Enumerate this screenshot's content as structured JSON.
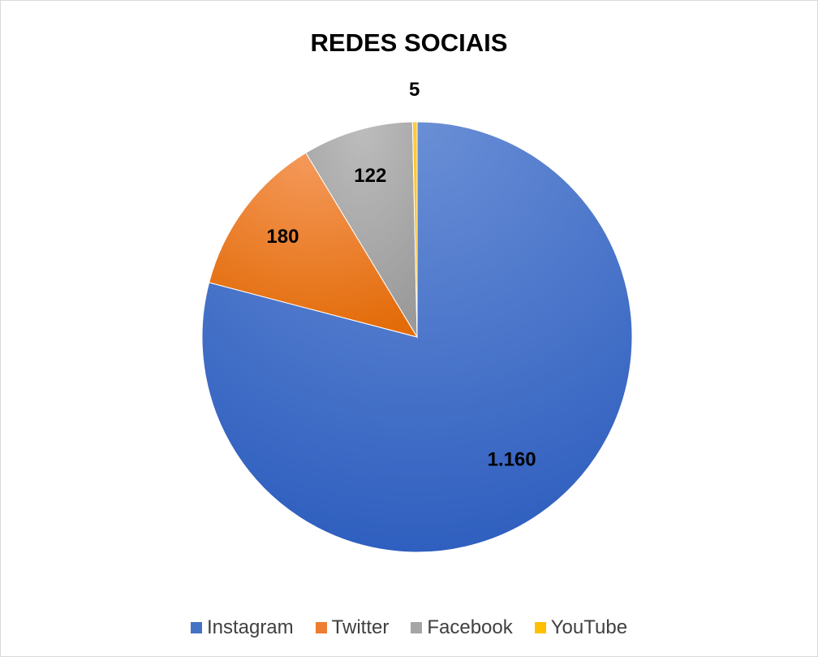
{
  "chart_data": {
    "type": "pie",
    "title": "REDES SOCIAIS",
    "categories": [
      "Instagram",
      "Twitter",
      "Facebook",
      "YouTube"
    ],
    "values": [
      1160,
      180,
      122,
      5
    ],
    "data_labels": [
      "1.160",
      "180",
      "122",
      "5"
    ],
    "colors": [
      "#4472C4",
      "#ED7D31",
      "#A5A5A5",
      "#FFC000"
    ],
    "legend_position": "bottom",
    "start_angle": "12 o'clock",
    "direction": "clockwise"
  }
}
